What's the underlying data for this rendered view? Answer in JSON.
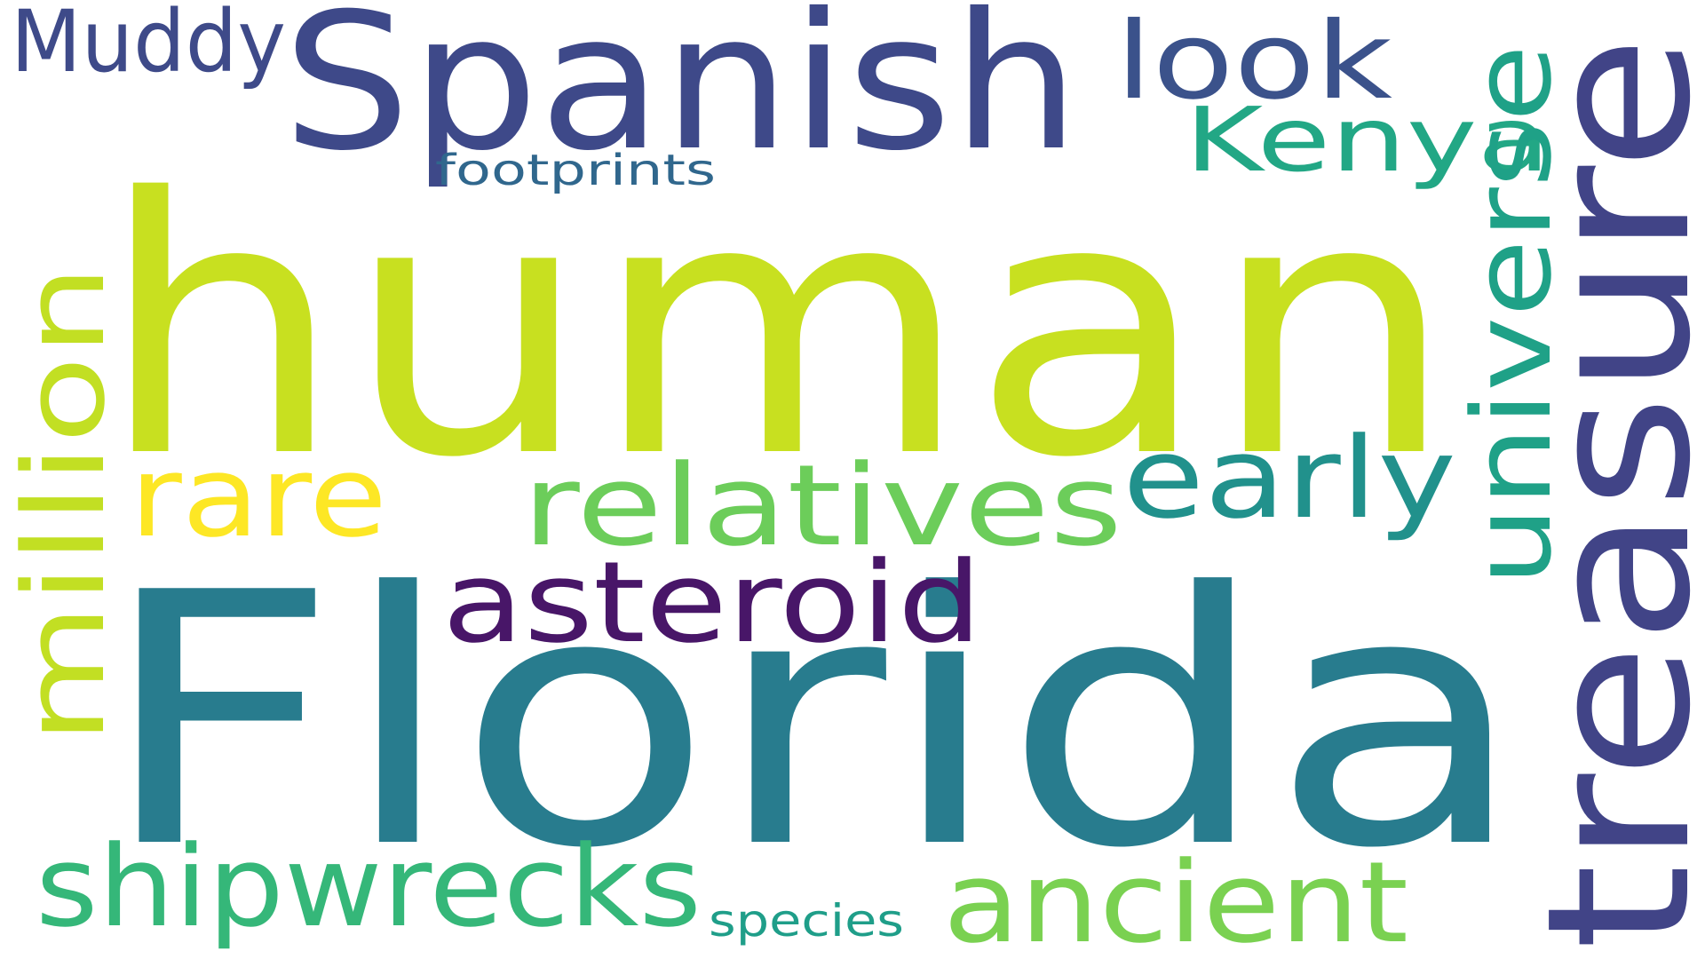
{
  "words": [
    {
      "text": "human",
      "color": "#c8e020"
    },
    {
      "text": "Florida",
      "color": "#287c8e"
    },
    {
      "text": "Spanish",
      "color": "#3e4989"
    },
    {
      "text": "treasure",
      "color": "#414487"
    },
    {
      "text": "universe",
      "color": "#1fa187"
    },
    {
      "text": "million",
      "color": "#c2df23"
    },
    {
      "text": "relatives",
      "color": "#6ccd5a"
    },
    {
      "text": "early",
      "color": "#21918c"
    },
    {
      "text": "asteroid",
      "color": "#481668"
    },
    {
      "text": "rare",
      "color": "#fde725"
    },
    {
      "text": "shipwrecks",
      "color": "#35b779"
    },
    {
      "text": "ancient",
      "color": "#7ad151"
    },
    {
      "text": "Kenya",
      "color": "#22a785"
    },
    {
      "text": "look",
      "color": "#3b528b"
    },
    {
      "text": "Muddy",
      "color": "#3e4a89"
    },
    {
      "text": "footprints",
      "color": "#30678d"
    },
    {
      "text": "species",
      "color": "#1f9e89"
    }
  ]
}
